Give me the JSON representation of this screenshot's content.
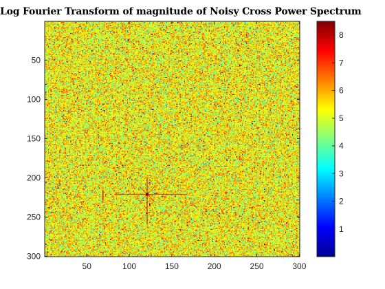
{
  "chart_data": {
    "type": "heatmap",
    "title": "Log Fourier Transform of magnitude of Noisy Cross Power Spectrum",
    "xlabel": "",
    "ylabel": "",
    "xlim": [
      0.5,
      300.5
    ],
    "ylim": [
      0.5,
      300.5
    ],
    "y_direction": "reverse",
    "x_ticks": [
      50,
      100,
      150,
      200,
      250,
      300
    ],
    "y_ticks": [
      50,
      100,
      150,
      200,
      250,
      300
    ],
    "colormap": "jet",
    "color_limits": [
      0,
      8.5
    ],
    "colorbar_ticks": [
      1,
      2,
      3,
      4,
      5,
      6,
      7,
      8
    ],
    "background_level_typical": 5.3,
    "peak": {
      "x": 121,
      "y": 221,
      "value": 8.5
    },
    "secondary_feature": {
      "x": 69,
      "y": 222
    },
    "grid": false
  }
}
